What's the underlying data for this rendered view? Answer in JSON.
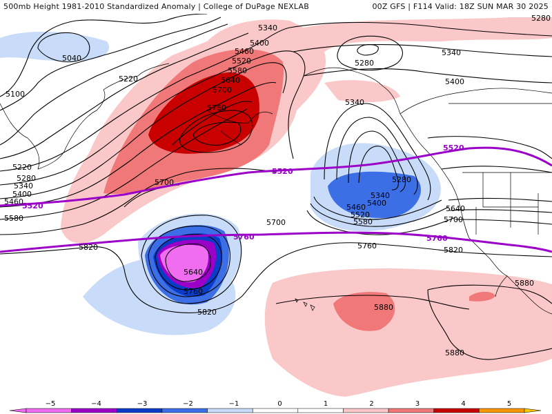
{
  "header": {
    "left_title": "500mb Height 1981-2010 Standardized Anomaly | College of DuPage NEXLAB",
    "right_title": "00Z GFS | F114 Valid: 18Z SUN MAR 30 2025"
  },
  "colors": {
    "anom_neg5": "#f06cf0",
    "anom_neg4": "#9b00c8",
    "anom_neg3": "#0a3cc8",
    "anom_neg2": "#3c6ee6",
    "anom_neg1": "#c8dcfa",
    "anom_pos1": "#fac8c8",
    "anom_pos2": "#f07878",
    "anom_pos3": "#c80000",
    "anom_pos4": "#c80000",
    "anom_pos5": "#fa9600",
    "height_contour": "#000000",
    "purple_contour": "#9b00c8",
    "coastline": "#000000"
  },
  "height_labels": {
    "h5040": "5040",
    "h5100": "5100",
    "h5220a": "5220",
    "h5220b": "5220",
    "h5280a": "5280",
    "h5340a": "5340",
    "h5400a": "5400",
    "h5460a": "5460",
    "h5580a": "5580",
    "h5460b": "5460",
    "h5520b": "5520",
    "h5580b": "5580",
    "h5640b": "5640",
    "h5700b": "5700",
    "h5760b": "5760",
    "h5700c": "5700",
    "h5340c": "5340",
    "h5400c": "5400",
    "h5280c": "5280",
    "h5340d": "5340",
    "h5280d": "5280",
    "h5400d": "5400",
    "h5340e": "5340",
    "h5280e": "5280",
    "h5340f": "5340",
    "h5400f": "5400",
    "h5460f": "5460",
    "h5520f": "5520",
    "h5580f": "5580",
    "h5640f": "5640",
    "h5700f": "5700",
    "h5700g": "5700",
    "h5820a": "5820",
    "h5640g": "5640",
    "h5760g": "5760",
    "h5820b": "5820",
    "h5760h": "5760",
    "h5820c": "5820",
    "h5880a": "5880",
    "h5880b": "5880",
    "h5880c": "5880"
  },
  "purple_labels": {
    "p5520a": "5520",
    "p5520b": "5520",
    "p5520c": "5520",
    "p5760a": "5760",
    "p5760b": "5760"
  },
  "colorbar": {
    "ticks": [
      "−5",
      "−4",
      "−3",
      "−2",
      "−1",
      "0",
      "1",
      "2",
      "3",
      "4",
      "5"
    ],
    "segment_colors": [
      "#f06cf0",
      "#9b00c8",
      "#0a3cc8",
      "#3c6ee6",
      "#c8dcfa",
      "#ffffff",
      "#ffffff",
      "#fac8c8",
      "#f07878",
      "#c80000",
      "#fa9600"
    ]
  }
}
